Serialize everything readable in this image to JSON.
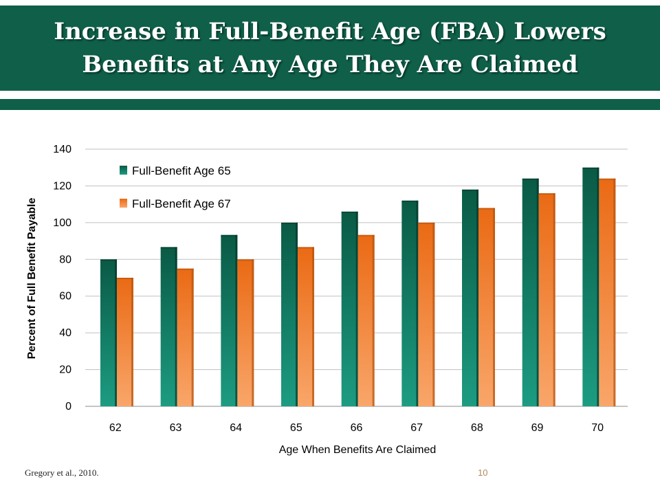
{
  "slide": {
    "title_line1": "Increase in Full-Benefit Age (FBA) Lowers",
    "title_line2": "Benefits at Any Age They Are Claimed",
    "source": "Gregory et al., 2010.",
    "page_number": "10"
  },
  "colors": {
    "band": "#0f5f49",
    "series_65": "#0d6650",
    "series_67": "#f07c2a"
  },
  "chart_data": {
    "type": "bar",
    "title": "",
    "xlabel": "Age When Benefits Are Claimed",
    "ylabel": "Percent of Full Benefit Payable",
    "categories": [
      "62",
      "63",
      "64",
      "65",
      "66",
      "67",
      "68",
      "69",
      "70"
    ],
    "series": [
      {
        "name": "Full-Benefit Age 65",
        "color": "#0d6650",
        "values": [
          80,
          86.7,
          93.3,
          100,
          106,
          112,
          118,
          124,
          130
        ]
      },
      {
        "name": "Full-Benefit Age 67",
        "color": "#f07c2a",
        "values": [
          70,
          75,
          80,
          86.7,
          93.3,
          100,
          108,
          116,
          124
        ]
      }
    ],
    "ylim": [
      0,
      140
    ],
    "yticks": [
      0,
      20,
      40,
      60,
      80,
      100,
      120,
      140
    ],
    "grid": true,
    "legend_position": "top-left"
  }
}
